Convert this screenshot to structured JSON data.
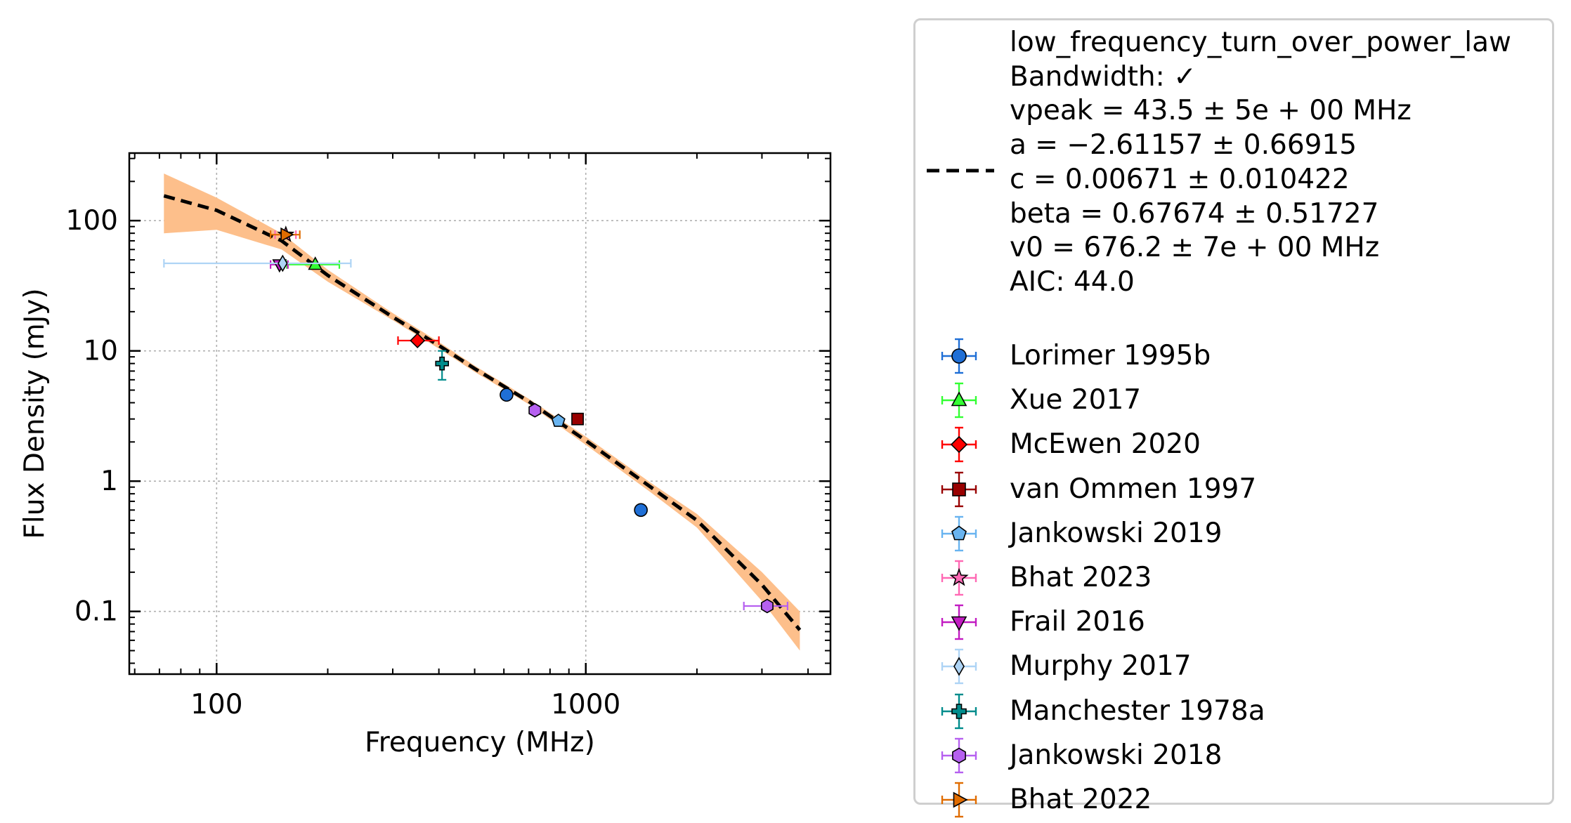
{
  "chart_data": {
    "type": "scatter",
    "xlabel": "Frequency (MHz)",
    "ylabel": "Flux Density (mJy)",
    "xscale": "log",
    "yscale": "log",
    "xlim": [
      58,
      4600
    ],
    "ylim": [
      0.033,
      330
    ],
    "xticks": [
      {
        "value": 100,
        "label": "100"
      },
      {
        "value": 1000,
        "label": "1000"
      }
    ],
    "yticks": [
      {
        "value": 0.1,
        "label": "0.1"
      },
      {
        "value": 1,
        "label": "1"
      },
      {
        "value": 10,
        "label": "10"
      },
      {
        "value": 100,
        "label": "100"
      }
    ],
    "grid": true,
    "legend_position": "outside-right",
    "fit": {
      "label": "low_frequency_turn_over_power_law",
      "lines": [
        "low_frequency_turn_over_power_law",
        "Bandwidth: ✓",
        "vpeak = 43.5 ± 5e + 00 MHz",
        "a = −2.61157 ± 0.66915",
        "c = 0.00671 ± 0.010422",
        "beta = 0.67674 ± 0.51727",
        "v0 = 676.2 ± 7e + 00 MHz",
        "AIC: 44.0"
      ],
      "color": "#000000",
      "band_color": "#fdbf8b",
      "curve": {
        "x": [
          72,
          100,
          150,
          200,
          300,
          400,
          500,
          700,
          1000,
          1500,
          2000,
          3000,
          3800
        ],
        "y": [
          155,
          120,
          70,
          38,
          18.2,
          11,
          7.3,
          4.1,
          2.05,
          0.9,
          0.5,
          0.16,
          0.072
        ]
      },
      "band": {
        "x": [
          72,
          100,
          150,
          200,
          300,
          400,
          500,
          700,
          1000,
          1500,
          2000,
          3000,
          3800
        ],
        "upper": [
          230,
          150,
          80,
          42,
          19.5,
          11.7,
          7.7,
          4.3,
          2.2,
          0.97,
          0.56,
          0.2,
          0.1
        ],
        "lower": [
          80,
          85,
          60,
          34,
          17.2,
          10.4,
          6.9,
          3.9,
          1.9,
          0.82,
          0.44,
          0.12,
          0.05
        ]
      }
    },
    "series": [
      {
        "name": "Lorimer 1995b",
        "marker": "circle",
        "color": "#1f6fd6",
        "points": [
          {
            "x": 610,
            "y": 4.6
          },
          {
            "x": 1410,
            "y": 0.6
          }
        ]
      },
      {
        "name": "Xue 2017",
        "marker": "triangle-up",
        "color": "#33ff33",
        "points": [
          {
            "x": 185,
            "y": 46,
            "xerr": [
              30,
              30
            ]
          }
        ]
      },
      {
        "name": "McEwen 2020",
        "marker": "diamond",
        "color": "#ff0000",
        "points": [
          {
            "x": 350,
            "y": 12,
            "xerr": [
              40,
              50
            ]
          }
        ]
      },
      {
        "name": "van Ommen 1997",
        "marker": "square",
        "color": "#990000",
        "points": [
          {
            "x": 950,
            "y": 3.0
          }
        ]
      },
      {
        "name": "Jankowski 2019",
        "marker": "pentagon",
        "color": "#69b4f0",
        "points": [
          {
            "x": 843,
            "y": 2.9
          }
        ]
      },
      {
        "name": "Bhat 2023",
        "marker": "star",
        "color": "#ff69b4",
        "points": [
          {
            "x": 154,
            "y": 78,
            "xerr": [
              10,
              10
            ]
          }
        ]
      },
      {
        "name": "Frail 2016",
        "marker": "triangle-down",
        "color": "#c21cc2",
        "points": [
          {
            "x": 148,
            "y": 46,
            "xerr": [
              8,
              8
            ]
          }
        ]
      },
      {
        "name": "Murphy 2017",
        "marker": "thin-diamond",
        "color": "#aed4f5",
        "points": [
          {
            "x": 151,
            "y": 47,
            "xerr": [
              79,
              80
            ]
          }
        ]
      },
      {
        "name": "Manchester 1978a",
        "marker": "plus",
        "color": "#008c8c",
        "points": [
          {
            "x": 408,
            "y": 8.0,
            "yerr": [
              2,
              2
            ]
          }
        ]
      },
      {
        "name": "Jankowski 2018",
        "marker": "hexagon",
        "color": "#b660f0",
        "points": [
          {
            "x": 728,
            "y": 3.5
          },
          {
            "x": 3100,
            "y": 0.11,
            "xerr": [
              420,
              420
            ]
          }
        ]
      },
      {
        "name": "Bhat 2022",
        "marker": "triangle-right",
        "color": "#e06c00",
        "points": [
          {
            "x": 154,
            "y": 78,
            "xerr": [
              14,
              14
            ]
          }
        ]
      }
    ]
  }
}
